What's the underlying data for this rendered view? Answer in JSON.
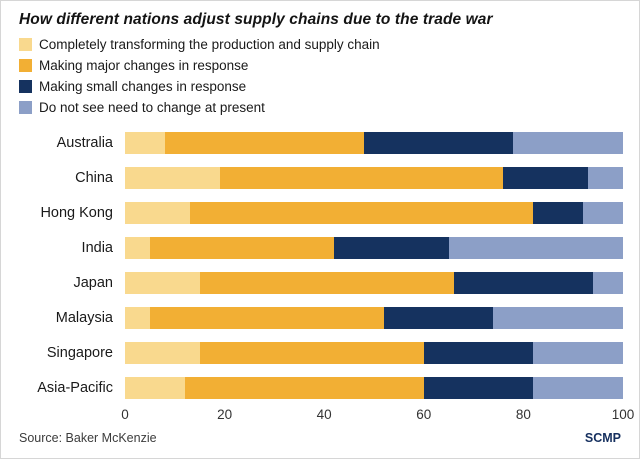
{
  "title": "How different nations adjust supply chains due to the trade war",
  "footer": {
    "source": "Source: Baker McKenzie",
    "credit": "SCMP"
  },
  "colors": {
    "transform": "#f9d98e",
    "major": "#f2af34",
    "small": "#15325f",
    "no_change": "#8c9fc7"
  },
  "chart_data": {
    "type": "bar",
    "orientation": "horizontal",
    "stacked": true,
    "title": "How different nations adjust supply chains due to the trade war",
    "xlabel": "",
    "ylabel": "",
    "xlim": [
      0,
      100
    ],
    "xticks": [
      0,
      20,
      40,
      60,
      80,
      100
    ],
    "grid": false,
    "legend_position": "top-left",
    "categories": [
      "Australia",
      "China",
      "Hong Kong",
      "India",
      "Japan",
      "Malaysia",
      "Singapore",
      "Asia-Pacific"
    ],
    "series": [
      {
        "name": "Completely transforming the production and supply chain",
        "color": "#f9d98e",
        "values": [
          8,
          19,
          13,
          5,
          15,
          5,
          15,
          12
        ]
      },
      {
        "name": "Making major changes in response",
        "color": "#f2af34",
        "values": [
          40,
          57,
          69,
          37,
          51,
          47,
          45,
          48
        ]
      },
      {
        "name": "Making small changes in response",
        "color": "#15325f",
        "values": [
          30,
          17,
          10,
          23,
          28,
          22,
          22,
          22
        ]
      },
      {
        "name": "Do not see need to change at present",
        "color": "#8c9fc7",
        "values": [
          22,
          7,
          8,
          35,
          6,
          26,
          18,
          18
        ]
      }
    ]
  }
}
